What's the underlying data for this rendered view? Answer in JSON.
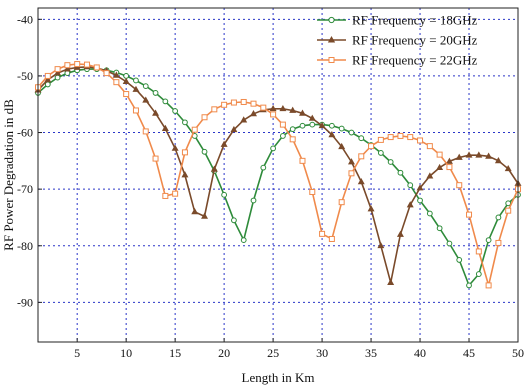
{
  "chart_data": {
    "type": "line",
    "title": "",
    "xlabel": "Length in Km",
    "ylabel": "RF Power Degradation in dB",
    "xlim": [
      1,
      50
    ],
    "ylim": [
      -97,
      -38
    ],
    "xticks": [
      5,
      10,
      15,
      20,
      25,
      30,
      35,
      40,
      45,
      50
    ],
    "yticks": [
      -40,
      -50,
      -60,
      -70,
      -80,
      -90
    ],
    "grid": true,
    "legend_position": "top-right",
    "series": [
      {
        "name": "RF Frequency = 18GHz",
        "color": "#2e8b3a",
        "marker": "circle",
        "x": [
          1,
          2,
          3,
          4,
          5,
          6,
          7,
          8,
          9,
          10,
          11,
          12,
          13,
          14,
          15,
          16,
          17,
          18,
          19,
          20,
          21,
          22,
          23,
          24,
          25,
          26,
          27,
          28,
          29,
          30,
          31,
          32,
          33,
          34,
          35,
          36,
          37,
          38,
          39,
          40,
          41,
          42,
          43,
          44,
          45,
          46,
          47,
          48,
          49,
          50
        ],
        "y": [
          -53,
          -51.5,
          -50.3,
          -49.5,
          -49,
          -48.8,
          -48.8,
          -49,
          -49.4,
          -50,
          -50.8,
          -51.8,
          -53,
          -54.5,
          -56.2,
          -58.2,
          -60.6,
          -63.4,
          -66.8,
          -71,
          -75.5,
          -79,
          -72,
          -66.2,
          -62.8,
          -60.6,
          -59.4,
          -58.8,
          -58.6,
          -58.6,
          -58.8,
          -59.3,
          -60,
          -61,
          -62.2,
          -63.6,
          -65.2,
          -67.1,
          -69.3,
          -72,
          -74.3,
          -76.9,
          -79.6,
          -82.5,
          -87,
          -85,
          -79,
          -75,
          -72.5,
          -71
        ]
      },
      {
        "name": "RF Frequency = 20GHz",
        "color": "#7a4a2a",
        "marker": "triangle",
        "x": [
          1,
          2,
          3,
          4,
          5,
          6,
          7,
          8,
          9,
          10,
          11,
          12,
          13,
          14,
          15,
          16,
          17,
          18,
          19,
          20,
          21,
          22,
          23,
          24,
          25,
          26,
          27,
          28,
          29,
          30,
          31,
          32,
          33,
          34,
          35,
          36,
          37,
          38,
          39,
          40,
          41,
          42,
          43,
          44,
          45,
          46,
          47,
          48,
          49,
          50
        ],
        "y": [
          -52.5,
          -50.7,
          -49.5,
          -48.8,
          -48.5,
          -48.4,
          -48.6,
          -49.1,
          -49.9,
          -51,
          -52.4,
          -54.3,
          -56.6,
          -59.3,
          -62.8,
          -67.5,
          -74,
          -74.8,
          -66.5,
          -62.1,
          -59.5,
          -57.8,
          -56.7,
          -56,
          -55.8,
          -55.8,
          -56.1,
          -56.6,
          -57.5,
          -58.8,
          -60.4,
          -62.5,
          -65.2,
          -68.7,
          -73.5,
          -80,
          -86.5,
          -78,
          -72.8,
          -69.8,
          -67.7,
          -66.2,
          -65.1,
          -64.4,
          -64,
          -64,
          -64.2,
          -65,
          -66.4,
          -69
        ]
      },
      {
        "name": "RF Frequency = 22GHz",
        "color": "#f08a4b",
        "marker": "square",
        "x": [
          1,
          2,
          3,
          4,
          5,
          6,
          7,
          8,
          9,
          10,
          11,
          12,
          13,
          14,
          15,
          16,
          17,
          18,
          19,
          20,
          21,
          22,
          23,
          24,
          25,
          26,
          27,
          28,
          29,
          30,
          31,
          32,
          33,
          34,
          35,
          36,
          37,
          38,
          39,
          40,
          41,
          42,
          43,
          44,
          45,
          46,
          47,
          48,
          49,
          50
        ],
        "y": [
          -52,
          -50,
          -48.8,
          -48.1,
          -47.9,
          -48,
          -48.5,
          -49.5,
          -51.1,
          -53.2,
          -56.1,
          -59.8,
          -64.6,
          -71.2,
          -70.8,
          -63.5,
          -59.5,
          -57.3,
          -55.9,
          -55.1,
          -54.7,
          -54.6,
          -54.9,
          -55.6,
          -56.8,
          -58.6,
          -61.2,
          -65,
          -70.5,
          -77.9,
          -78.8,
          -72.3,
          -67.2,
          -64.2,
          -62.4,
          -61.3,
          -60.8,
          -60.6,
          -60.8,
          -61.4,
          -62.4,
          -63.9,
          -66.1,
          -69.3,
          -74.5,
          -81,
          -87,
          -79.5,
          -73.8,
          -70
        ]
      }
    ]
  }
}
